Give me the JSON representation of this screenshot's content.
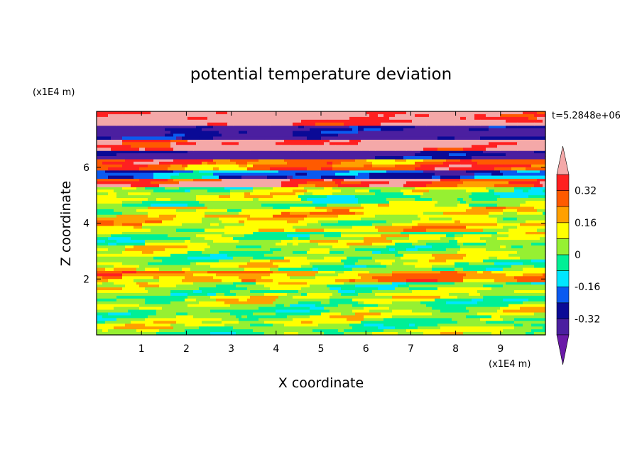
{
  "chart_data": {
    "type": "heatmap",
    "title": "potential temperature deviation",
    "xlabel": "X coordinate",
    "ylabel": "Z coordinate",
    "x_unit_label": "(x1E4 m)",
    "y_unit_label": "(x1E4 m)",
    "time_label": "t=5.2848e+06",
    "xlim": [
      0,
      10
    ],
    "ylim": [
      0,
      8
    ],
    "x_ticks": [
      1,
      2,
      3,
      4,
      5,
      6,
      7,
      8,
      9
    ],
    "y_ticks": [
      2,
      4,
      6
    ],
    "x_tick_labels": [
      "1",
      "2",
      "3",
      "4",
      "5",
      "6",
      "7",
      "8",
      "9"
    ],
    "y_tick_labels": [
      "2",
      "4",
      "6"
    ],
    "colorbar": {
      "levels": [
        -0.4,
        -0.32,
        -0.24,
        -0.16,
        -0.08,
        0,
        0.08,
        0.16,
        0.24,
        0.32,
        0.4
      ],
      "colors": [
        "#4b1fa0",
        "#0a0a96",
        "#0a5af0",
        "#00e6ff",
        "#00f096",
        "#96f032",
        "#ffff00",
        "#ffa000",
        "#ff5a00",
        "#ff2020",
        "#f4a8a8"
      ],
      "under_color": "#6a1aa8",
      "over_color": "#f4a8a8",
      "labels": [
        "0.32",
        "0.16",
        "0",
        "-0.16",
        "-0.32"
      ],
      "label_values": [
        0.32,
        0.16,
        0,
        -0.16,
        -0.32
      ]
    },
    "layers": [
      {
        "z0": 0.0,
        "z1": 1.9,
        "base": 5
      },
      {
        "z0": 1.9,
        "z1": 2.3,
        "base": 7
      },
      {
        "z0": 2.3,
        "z1": 3.7,
        "base": 5
      },
      {
        "z0": 3.7,
        "z1": 4.6,
        "base": 6
      },
      {
        "z0": 4.6,
        "z1": 5.3,
        "base": 5
      },
      {
        "z0": 5.3,
        "z1": 5.6,
        "base": 9
      },
      {
        "z0": 5.6,
        "z1": 5.9,
        "base": 2
      },
      {
        "z0": 5.9,
        "z1": 6.3,
        "base": 8
      },
      {
        "z0": 6.3,
        "z1": 6.6,
        "base": 0
      },
      {
        "z0": 6.6,
        "z1": 7.0,
        "base": 10
      },
      {
        "z0": 7.0,
        "z1": 7.5,
        "base": 0
      },
      {
        "z0": 7.5,
        "z1": 8.0,
        "base": 10
      }
    ]
  }
}
